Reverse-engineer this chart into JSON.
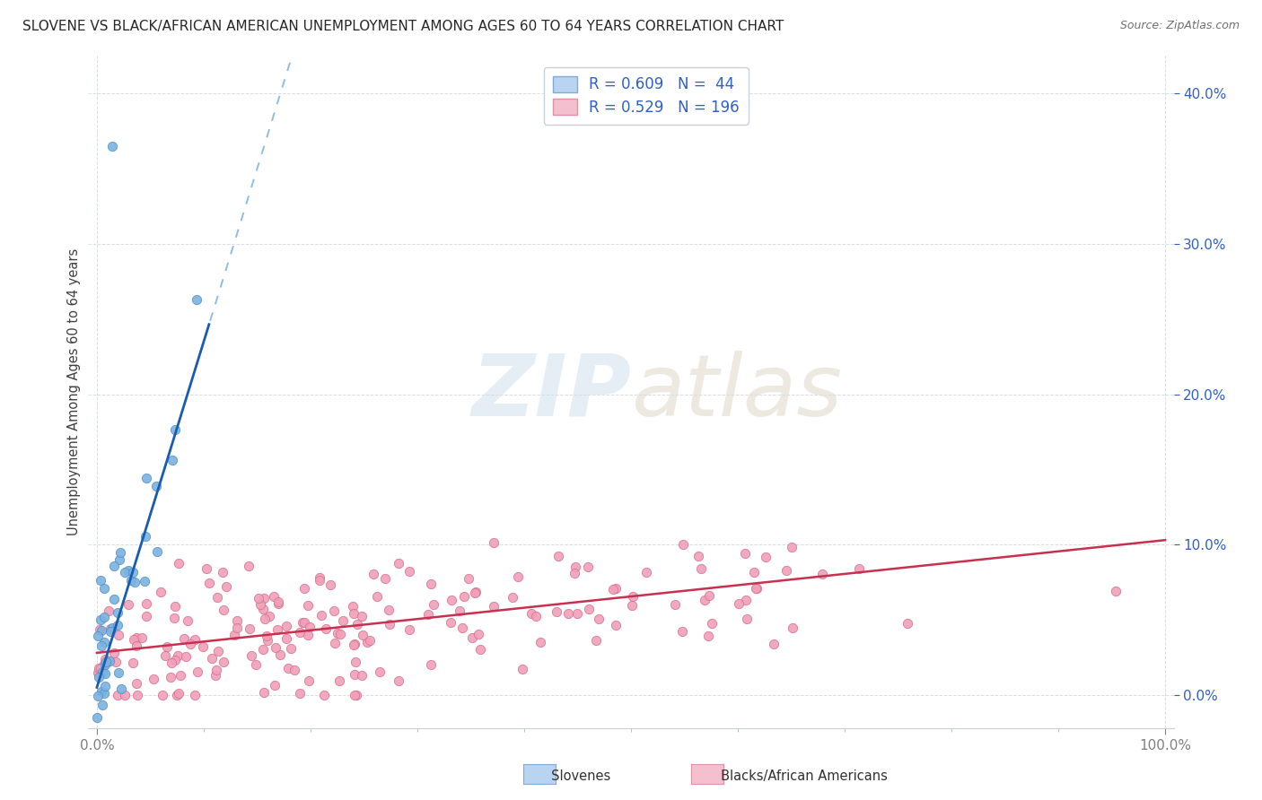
{
  "title": "SLOVENE VS BLACK/AFRICAN AMERICAN UNEMPLOYMENT AMONG AGES 60 TO 64 YEARS CORRELATION CHART",
  "source": "Source: ZipAtlas.com",
  "ylabel": "Unemployment Among Ages 60 to 64 years",
  "slovene_scatter_color": "#7ab3e0",
  "slovene_scatter_edge": "#5590c8",
  "black_scatter_color": "#f0a0b8",
  "black_scatter_edge": "#d87090",
  "slovene_line_color": "#1a5cb0",
  "black_line_color": "#c83050",
  "slovene_dashed_color": "#90bce0",
  "background_color": "#ffffff",
  "grid_color": "#d8dde2",
  "ytick_color": "#3060c8",
  "xtick_color": "#808080",
  "legend_blue_face": "#b8d4f0",
  "legend_blue_edge": "#80aad8",
  "legend_pink_face": "#f4c0d0",
  "legend_pink_edge": "#e090a8"
}
